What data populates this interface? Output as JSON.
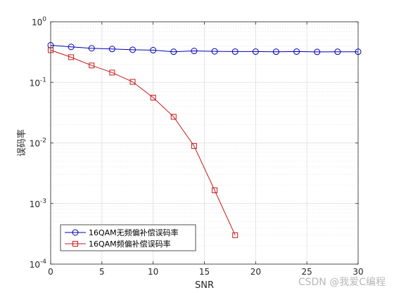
{
  "chart_data": {
    "type": "line",
    "xlabel": "SNR",
    "ylabel": "误码率",
    "xlim": [
      0,
      30
    ],
    "ylim": [
      0.0001,
      1
    ],
    "yscale": "log",
    "grid": true,
    "legend_position": "bottom-left",
    "x_ticks": [
      0,
      5,
      10,
      15,
      20,
      25,
      30
    ],
    "y_ticks": [
      {
        "value": 1,
        "base": "10",
        "exp": "0"
      },
      {
        "value": 0.1,
        "base": "10",
        "exp": "-1"
      },
      {
        "value": 0.01,
        "base": "10",
        "exp": "-2"
      },
      {
        "value": 0.001,
        "base": "10",
        "exp": "-3"
      },
      {
        "value": 0.0001,
        "base": "10",
        "exp": "-4"
      }
    ],
    "series": [
      {
        "name": "16QAM无频偏补偿误码率",
        "color": "#0000b3",
        "marker": "circle",
        "x": [
          0,
          2,
          4,
          6,
          8,
          10,
          12,
          14,
          16,
          18,
          20,
          22,
          24,
          26,
          28,
          30
        ],
        "y": [
          0.41,
          0.385,
          0.365,
          0.355,
          0.345,
          0.34,
          0.32,
          0.33,
          0.325,
          0.322,
          0.322,
          0.32,
          0.322,
          0.318,
          0.32,
          0.32
        ]
      },
      {
        "name": "16QAM频偏补偿误码率",
        "color": "#c41a1a",
        "marker": "square",
        "x": [
          0,
          2,
          4,
          6,
          8,
          10,
          12,
          14,
          16,
          18
        ],
        "y": [
          0.34,
          0.26,
          0.19,
          0.145,
          0.102,
          0.056,
          0.027,
          0.0089,
          0.00165,
          0.0003
        ]
      }
    ]
  },
  "watermark": "CSDN @我爱C编程"
}
